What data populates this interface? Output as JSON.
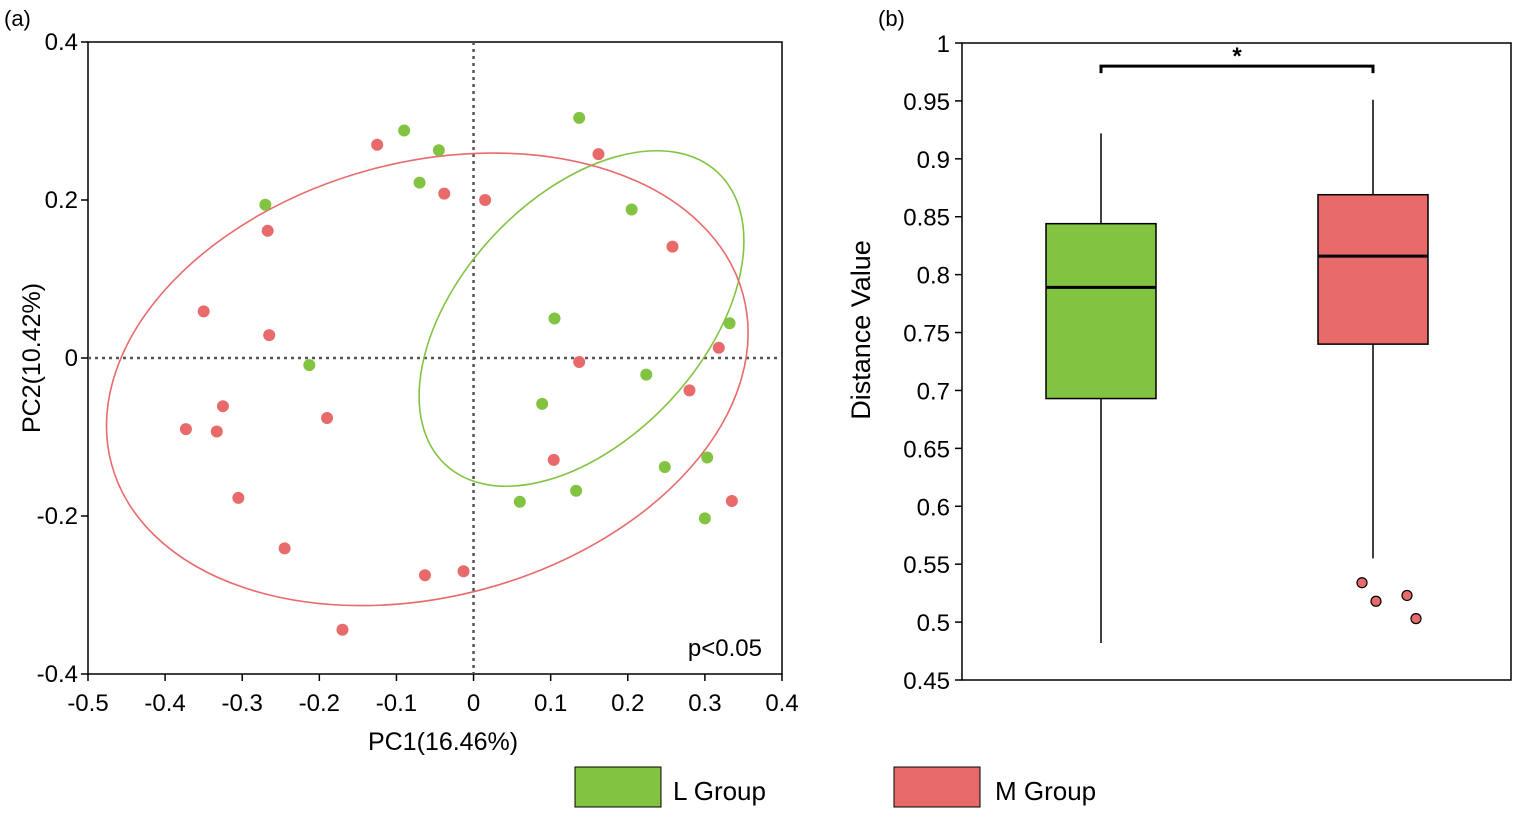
{
  "colors": {
    "l_group": "#82c341",
    "m_group": "#e86a6a",
    "axis": "#000000",
    "refline": "#555555"
  },
  "legend": {
    "items": [
      {
        "label": "L Group",
        "color": "#82c341"
      },
      {
        "label": "M Group",
        "color": "#e86a6a"
      }
    ]
  },
  "chart_data": [
    {
      "panel": "(a)",
      "type": "scatter",
      "title": "",
      "xlabel": "PC1(16.46%)",
      "ylabel": "PC2(10.42%)",
      "xlim": [
        -0.5,
        0.4
      ],
      "ylim": [
        -0.4,
        0.4
      ],
      "xticks": [
        -0.5,
        -0.4,
        -0.3,
        -0.2,
        -0.1,
        0,
        0.1,
        0.2,
        0.3,
        0.4
      ],
      "xtick_labels": [
        "-0.5",
        "-0.4",
        "-0.3",
        "-0.2",
        "-0.1",
        "0",
        "0.1",
        "0.2",
        "0.3",
        "0.4"
      ],
      "yticks": [
        -0.4,
        -0.2,
        0,
        0.2,
        0.4
      ],
      "ytick_labels": [
        "-0.4",
        "-0.2",
        "0",
        "0.2",
        "0.4"
      ],
      "reference_lines": {
        "x": 0,
        "y": 0,
        "style": "dotted"
      },
      "annotation": "p<0.05",
      "series": [
        {
          "name": "L Group",
          "color": "#82c341",
          "points": [
            [
              -0.09,
              0.288
            ],
            [
              -0.045,
              0.263
            ],
            [
              -0.07,
              0.222
            ],
            [
              -0.27,
              0.194
            ],
            [
              0.137,
              0.304
            ],
            [
              0.205,
              0.188
            ],
            [
              0.332,
              0.044
            ],
            [
              0.105,
              0.05
            ],
            [
              -0.213,
              -0.009
            ],
            [
              0.224,
              -0.021
            ],
            [
              0.089,
              -0.058
            ],
            [
              0.248,
              -0.138
            ],
            [
              0.303,
              -0.126
            ],
            [
              0.133,
              -0.168
            ],
            [
              0.06,
              -0.182
            ],
            [
              0.3,
              -0.203
            ]
          ],
          "ellipse": {
            "center": [
              0.14,
              0.05
            ],
            "rx": 0.259,
            "ry": 0.153,
            "angle_deg": -47
          }
        },
        {
          "name": "M Group",
          "color": "#e86a6a",
          "points": [
            [
              -0.125,
              0.27
            ],
            [
              0.162,
              0.258
            ],
            [
              -0.038,
              0.208
            ],
            [
              0.015,
              0.2
            ],
            [
              -0.267,
              0.161
            ],
            [
              0.258,
              0.141
            ],
            [
              -0.35,
              0.059
            ],
            [
              -0.265,
              0.029
            ],
            [
              0.318,
              0.013
            ],
            [
              0.137,
              -0.005
            ],
            [
              0.28,
              -0.041
            ],
            [
              -0.325,
              -0.061
            ],
            [
              -0.19,
              -0.076
            ],
            [
              -0.373,
              -0.09
            ],
            [
              -0.333,
              -0.093
            ],
            [
              0.104,
              -0.129
            ],
            [
              -0.305,
              -0.177
            ],
            [
              0.335,
              -0.181
            ],
            [
              -0.245,
              -0.241
            ],
            [
              -0.063,
              -0.275
            ],
            [
              -0.013,
              -0.27
            ],
            [
              -0.17,
              -0.344
            ]
          ],
          "ellipse": {
            "center": [
              -0.06,
              -0.027
            ],
            "rx": 0.424,
            "ry": 0.275,
            "angle_deg": -15
          }
        }
      ]
    },
    {
      "panel": "(b)",
      "type": "box",
      "title": "",
      "xlabel": "",
      "ylabel": "Distance Value",
      "ylim": [
        0.45,
        1
      ],
      "yticks": [
        0.45,
        0.5,
        0.55,
        0.6,
        0.65,
        0.7,
        0.75,
        0.8,
        0.85,
        0.9,
        0.95,
        1
      ],
      "ytick_labels": [
        "0.45",
        "0.5",
        "0.55",
        "0.6",
        "0.65",
        "0.7",
        "0.75",
        "0.8",
        "0.85",
        "0.9",
        "0.95",
        "1"
      ],
      "significance": {
        "label": "*",
        "between": [
          "L Group",
          "M Group"
        ],
        "y": 0.98
      },
      "series": [
        {
          "name": "L Group",
          "color": "#82c341",
          "whisker_low": 0.482,
          "q1": 0.693,
          "median": 0.789,
          "q3": 0.844,
          "whisker_high": 0.922,
          "outliers": []
        },
        {
          "name": "M Group",
          "color": "#e86a6a",
          "whisker_low": 0.555,
          "q1": 0.74,
          "median": 0.816,
          "q3": 0.869,
          "whisker_high": 0.951,
          "outliers": [
            0.534,
            0.518,
            0.523,
            0.503
          ]
        }
      ]
    }
  ]
}
